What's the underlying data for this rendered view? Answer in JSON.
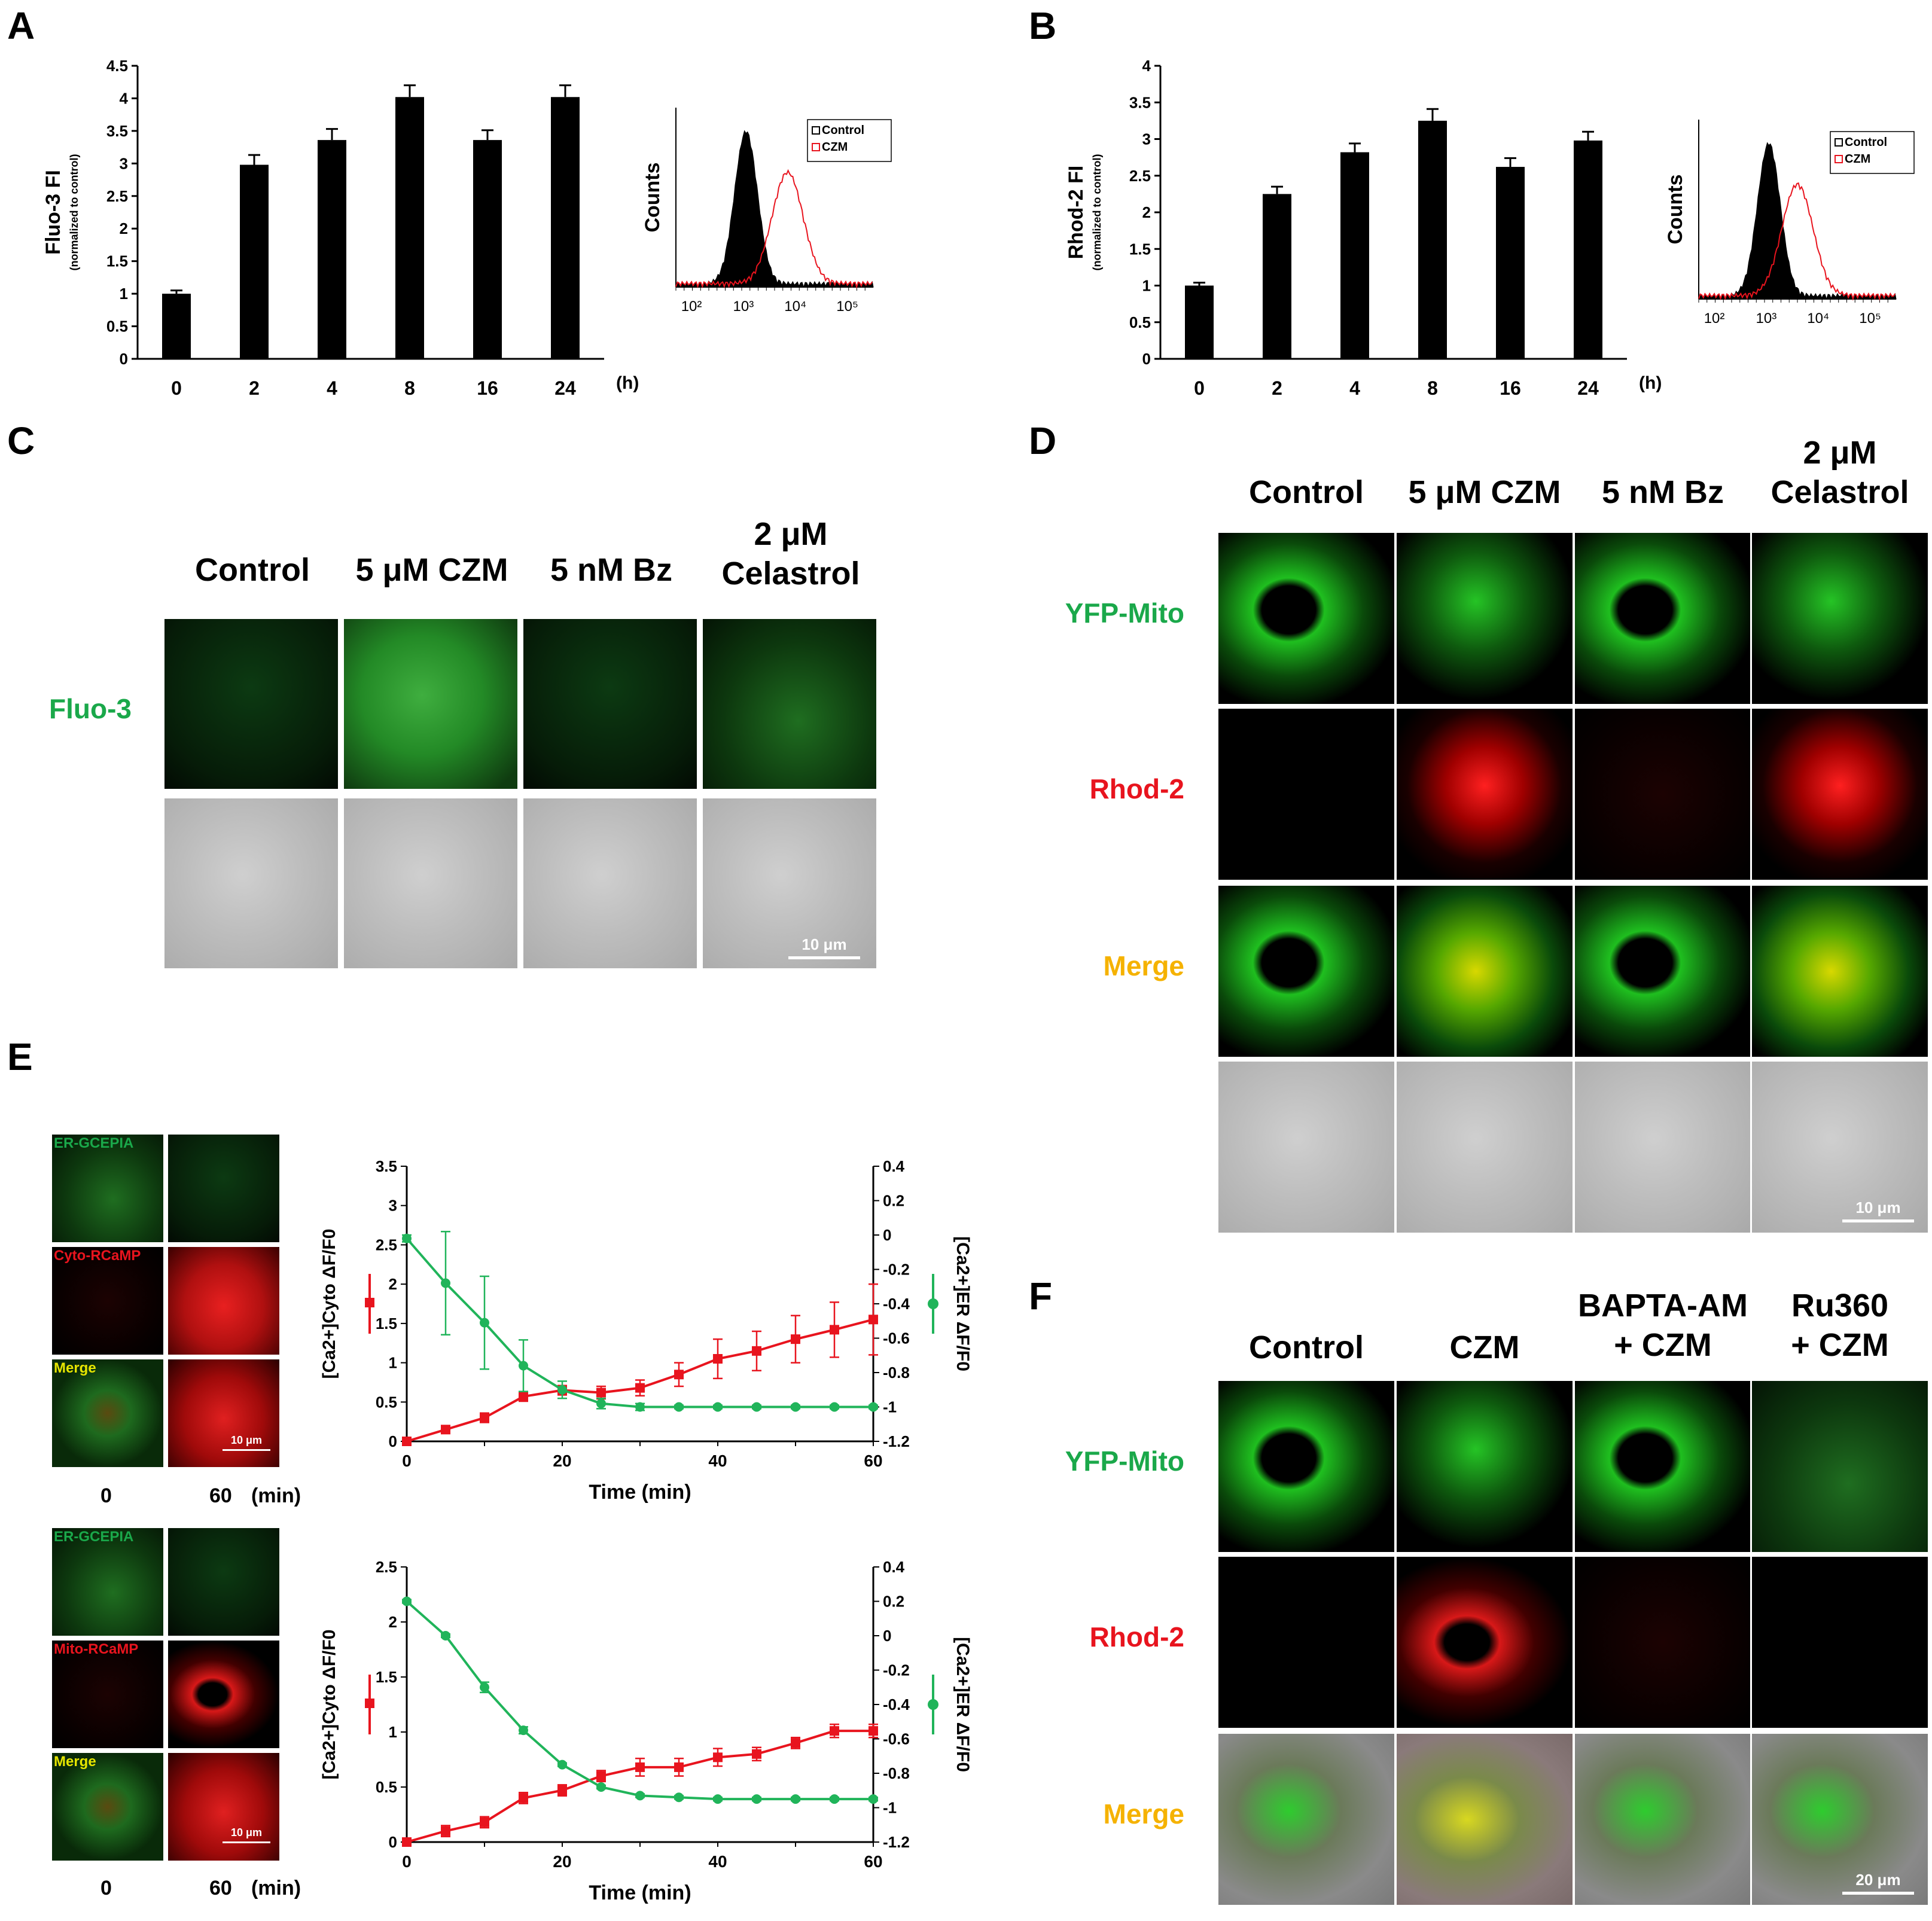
{
  "panels": {
    "A": "A",
    "B": "B",
    "C": "C",
    "D": "D",
    "E": "E",
    "F": "F"
  },
  "chart_data": [
    {
      "type": "bar",
      "panel": "A",
      "categories": [
        "0",
        "2",
        "4",
        "8",
        "16",
        "24"
      ],
      "values": [
        1.0,
        2.98,
        3.36,
        4.02,
        3.36,
        4.02
      ],
      "errors": [
        0.05,
        0.15,
        0.17,
        0.18,
        0.15,
        0.18
      ],
      "ylabel": "Fluo-3 FI",
      "ylabel_sub": "(normalized to control)",
      "xunit": "(h)",
      "ylim": [
        0,
        4.5
      ],
      "yticks": [
        "0",
        "0.5",
        "1",
        "1.5",
        "2",
        "2.5",
        "3",
        "3.5",
        "4",
        "4.5"
      ]
    },
    {
      "type": "bar",
      "panel": "B",
      "categories": [
        "0",
        "2",
        "4",
        "8",
        "16",
        "24"
      ],
      "values": [
        1.0,
        2.25,
        2.82,
        3.25,
        2.62,
        2.98
      ],
      "errors": [
        0.04,
        0.1,
        0.12,
        0.16,
        0.12,
        0.12
      ],
      "ylabel": "Rhod-2 FI",
      "ylabel_sub": "(normalized to control)",
      "xunit": "(h)",
      "ylim": [
        0,
        4
      ],
      "yticks": [
        "0",
        "0.5",
        "1",
        "1.5",
        "2",
        "2.5",
        "3",
        "3.5",
        "4"
      ]
    },
    {
      "type": "line",
      "panel": "A-inset",
      "ylabel": "Counts",
      "xticks": [
        "10²",
        "10³",
        "10⁴",
        "10⁵"
      ],
      "legend": [
        "Control",
        "CZM"
      ],
      "series": [
        {
          "name": "Control",
          "peak_log": 3.05,
          "filled": true
        },
        {
          "name": "CZM",
          "peak_log": 3.85,
          "filled": false
        }
      ]
    },
    {
      "type": "line",
      "panel": "B-inset",
      "ylabel": "Counts",
      "xticks": [
        "10²",
        "10³",
        "10⁴",
        "10⁵"
      ],
      "legend": [
        "Control",
        "CZM"
      ],
      "series": [
        {
          "name": "Control",
          "peak_log": 3.05,
          "filled": true
        },
        {
          "name": "CZM",
          "peak_log": 3.6,
          "filled": false
        }
      ]
    },
    {
      "type": "line",
      "panel": "E-top",
      "x": [
        0,
        5,
        10,
        15,
        20,
        25,
        30,
        35,
        40,
        45,
        50,
        55,
        60
      ],
      "xlabel": "Time (min)",
      "ylabel_left": "[Ca2+]Cyto ΔF/F0",
      "ylabel_right": "[Ca2+]ER ΔF/F0",
      "ylim_left": [
        0,
        3.5
      ],
      "ylim_right": [
        -1.2,
        0.4
      ],
      "yticks_left": [
        "0",
        "0.5",
        "1",
        "1.5",
        "2",
        "2.5",
        "3",
        "3.5"
      ],
      "yticks_right": [
        "-1.2",
        "-1",
        "-0.8",
        "-0.6",
        "-0.4",
        "-0.2",
        "0",
        "0.2",
        "0.4"
      ],
      "xticks": [
        "0",
        "20",
        "40",
        "60"
      ],
      "series": [
        {
          "name": "red",
          "axis": "left",
          "values": [
            0,
            0.15,
            0.3,
            0.57,
            0.65,
            0.62,
            0.68,
            0.85,
            1.05,
            1.15,
            1.3,
            1.42,
            1.55
          ],
          "errors": [
            0.02,
            0.05,
            0.06,
            0.06,
            0.06,
            0.08,
            0.1,
            0.15,
            0.25,
            0.25,
            0.3,
            0.35,
            0.45
          ]
        },
        {
          "name": "green",
          "axis": "right",
          "values": [
            -0.02,
            -0.28,
            -0.51,
            -0.76,
            -0.9,
            -0.98,
            -1.0,
            -1.0,
            -1.0,
            -1.0,
            -1.0,
            -1.0,
            -1.0
          ],
          "errors": [
            0.02,
            0.3,
            0.27,
            0.15,
            0.05,
            0.03,
            0.02,
            0.01,
            0.01,
            0.01,
            0.01,
            0.01,
            0.01
          ]
        }
      ]
    },
    {
      "type": "line",
      "panel": "E-bottom",
      "x": [
        0,
        5,
        10,
        15,
        20,
        25,
        30,
        35,
        40,
        45,
        50,
        55,
        60
      ],
      "xlabel": "Time (min)",
      "ylabel_left": "[Ca2+]Cyto ΔF/F0",
      "ylabel_right": "[Ca2+]ER ΔF/F0",
      "ylim_left": [
        0,
        2.5
      ],
      "ylim_right": [
        -1.2,
        0.4
      ],
      "yticks_left": [
        "0",
        "0.5",
        "1",
        "1.5",
        "2",
        "2.5"
      ],
      "yticks_right": [
        "-1.2",
        "-1",
        "-0.8",
        "-0.6",
        "-0.4",
        "-0.2",
        "0",
        "0.2",
        "0.4"
      ],
      "xticks": [
        "0",
        "20",
        "40",
        "60"
      ],
      "series": [
        {
          "name": "red",
          "axis": "left",
          "values": [
            0,
            0.1,
            0.18,
            0.4,
            0.47,
            0.6,
            0.68,
            0.68,
            0.77,
            0.8,
            0.9,
            1.01,
            1.01
          ],
          "errors": [
            0.01,
            0.05,
            0.05,
            0.05,
            0.05,
            0.05,
            0.08,
            0.08,
            0.08,
            0.06,
            0.05,
            0.06,
            0.06
          ],
          "markers": "square"
        },
        {
          "name": "green",
          "axis": "right",
          "values": [
            0.2,
            0.0,
            -0.3,
            -0.55,
            -0.75,
            -0.88,
            -0.93,
            -0.94,
            -0.95,
            -0.95,
            -0.95,
            -0.95,
            -0.95
          ],
          "errors": [
            0.01,
            0.01,
            0.03,
            0.02,
            0.01,
            0.01,
            0.01,
            0.01,
            0.01,
            0.01,
            0.01,
            0.01,
            0.01
          ]
        }
      ]
    }
  ],
  "C": {
    "headers": [
      "Control",
      "5 μM CZM",
      "5 nM Bz",
      "2 μM\nCelastrol"
    ],
    "row_label": "Fluo-3",
    "scale": "10 μm"
  },
  "D": {
    "headers": [
      "Control",
      "5 μM CZM",
      "5 nM Bz",
      "2 μM\nCelastrol"
    ],
    "rows": [
      "YFP-Mito",
      "Rhod-2",
      "Merge"
    ],
    "scale": "10 μm"
  },
  "E": {
    "top_labels": [
      "ER-GCEPIA",
      "Cyto-RCaMP",
      "Merge"
    ],
    "bottom_labels": [
      "ER-GCEPIA",
      "Mito-RCaMP",
      "Merge"
    ],
    "time0": "0",
    "time60": "60",
    "unit": "(min)",
    "scale": "10 μm"
  },
  "F": {
    "headers": [
      "Control",
      "CZM",
      "BAPTA-AM\n+ CZM",
      "Ru360\n+ CZM"
    ],
    "rows": [
      "YFP-Mito",
      "Rhod-2",
      "Merge"
    ],
    "scale": "20 μm"
  }
}
